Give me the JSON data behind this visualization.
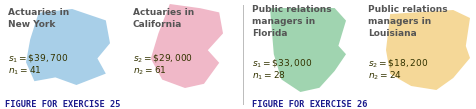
{
  "fig25_title": "FIGURE FOR EXERCISE 25",
  "fig26_title": "FIGURE FOR EXERCISE 26",
  "ex25_left_header": "Actuaries in\nNew York",
  "ex25_left_s": "$s_1 = \\$39,700$",
  "ex25_left_n": "$n_1 = 41$",
  "ex25_right_header": "Actuaries in\nCalifornia",
  "ex25_right_s": "$s_2 = \\$29,000$",
  "ex25_right_n": "$n_2 = 61$",
  "ex26_left_header": "Public relations\nmanagers in\nFlorida",
  "ex26_left_s": "$s_1 = \\$33,000$",
  "ex26_left_n": "$n_1 = 28$",
  "ex26_right_header": "Public relations\nmanagers in\nLouisiana",
  "ex26_right_s": "$s_2 = \\$18,200$",
  "ex26_right_n": "$n_2 = 24$",
  "ny_color": "#a8cfe8",
  "ca_color": "#f0b8c8",
  "fl_color": "#a0d4b0",
  "la_color": "#f5d898",
  "title_color": "#1a1a8c",
  "header_color": "#555555",
  "text_color": "#333300"
}
